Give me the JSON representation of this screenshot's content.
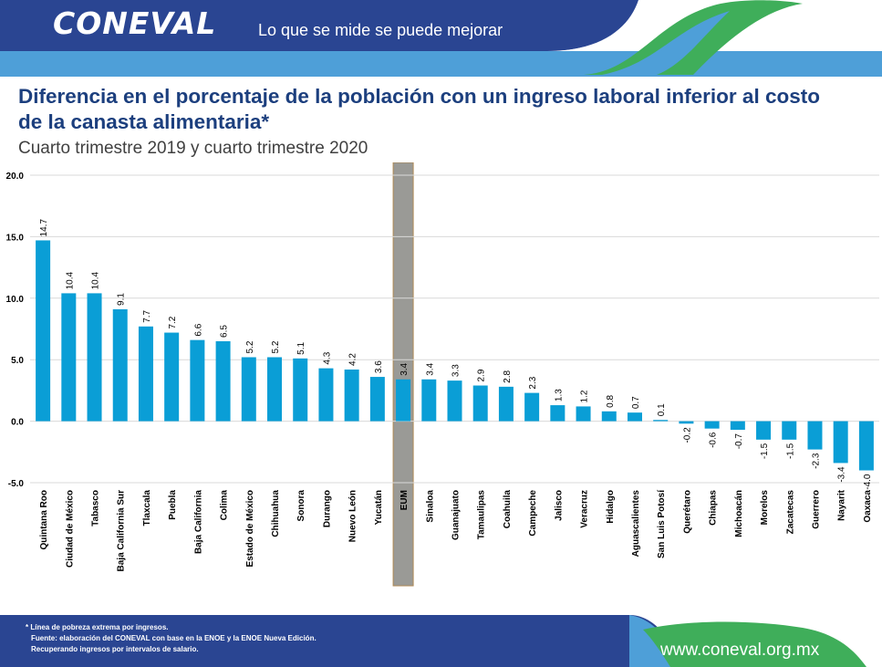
{
  "header": {
    "logo_text": "CONEVAL",
    "slogan": "Lo que se mide se puede mejorar"
  },
  "colors": {
    "navy": "#2a4592",
    "light_blue": "#4e9fd8",
    "green": "#3fae5a",
    "bar": "#0a9ed6",
    "eum_highlight": "#9a9a96"
  },
  "chart_data": {
    "type": "bar",
    "title": "Diferencia en el porcentaje de la población con un ingreso laboral inferior al costo de la canasta alimentaria*",
    "subtitle": "Cuarto trimestre 2019 y cuarto trimestre 2020",
    "xlabel": "",
    "ylabel": "",
    "ylim": [
      -5,
      20
    ],
    "yticks": [
      "20.0",
      "15.0",
      "10.0",
      "5.0",
      "0.0",
      "-5.0"
    ],
    "grid": true,
    "highlight_category": "EUM",
    "categories": [
      "Quintana Roo",
      "Ciudad de México",
      "Tabasco",
      "Baja California Sur",
      "Tlaxcala",
      "Puebla",
      "Baja California",
      "Colima",
      "Estado de México",
      "Chihuahua",
      "Sonora",
      "Durango",
      "Nuevo León",
      "Yucatán",
      "EUM",
      "Sinaloa",
      "Guanajuato",
      "Tamaulipas",
      "Coahuila",
      "Campeche",
      "Jalisco",
      "Veracruz",
      "Hidalgo",
      "Aguascalientes",
      "San Luis Potosí",
      "Querétaro",
      "Chiapas",
      "Michoacán",
      "Morelos",
      "Zacatecas",
      "Guerrero",
      "Nayarit",
      "Oaxaca"
    ],
    "values": [
      14.7,
      10.4,
      10.4,
      9.1,
      7.7,
      7.2,
      6.6,
      6.5,
      5.2,
      5.2,
      5.1,
      4.3,
      4.2,
      3.6,
      3.4,
      3.4,
      3.3,
      2.9,
      2.8,
      2.3,
      1.3,
      1.2,
      0.8,
      0.7,
      0.1,
      -0.2,
      -0.6,
      -0.7,
      -1.5,
      -1.5,
      -2.3,
      -3.4,
      -4.0
    ],
    "value_labels": [
      "14.7",
      "10.4",
      "10.4",
      "9.1",
      "7.7",
      "7.2",
      "6.6",
      "6.5",
      "5.2",
      "5.2",
      "5.1",
      "4.3",
      "4.2",
      "3.6",
      "3.4",
      "3.4",
      "3.3",
      "2.9",
      "2.8",
      "2.3",
      "1.3",
      "1.2",
      "0.8",
      "0.7",
      "0.1",
      "-0.2",
      "-0.6",
      "-0.7",
      "-1.5",
      "-1.5",
      "-2.3",
      "-3.4",
      "-4.0"
    ]
  },
  "footer": {
    "note_1": "* Línea de pobreza extrema por ingresos.",
    "note_2": "Fuente: elaboración del CONEVAL con base en la ENOE y la ENOE Nueva Edición.",
    "note_3": "Recuperando ingresos  por intervalos de salario.",
    "url": "www.coneval.org.mx"
  }
}
